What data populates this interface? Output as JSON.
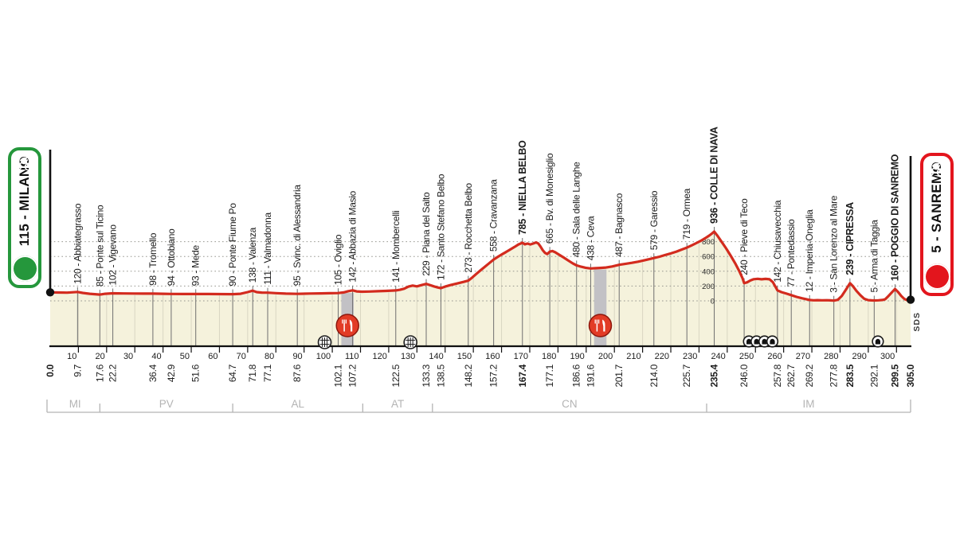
{
  "race": {
    "start_badge": "115 - MILANO",
    "finish_badge": "5 - SANREMO",
    "sds_label": "SDS"
  },
  "colors": {
    "profile_red": "#d32b1e",
    "area_fill": "#f5f2dc",
    "start_green": "#25973c",
    "finish_red": "#e3151d",
    "band_gray": "#c2c1c5",
    "town_line_gray": "#6f6f6f",
    "km_grid": "#d9d6c2",
    "dotted_gray": "#979790",
    "province_gray": "#b4b4b4",
    "axis_black": "#111111",
    "feed_icon_red": "#e23b26"
  },
  "icons": {
    "start": "cyclist-icon",
    "finish": "cyclist-icon",
    "feed_zone": "fork-knife-icon",
    "level_crossing": "crossing-grid-icon",
    "tunnel": "tunnel-arch-icon"
  },
  "chart_data": {
    "type": "area",
    "x_unit": "km",
    "y_unit": "m",
    "x_range": [
      0,
      305
    ],
    "elevation_ticks": [
      0,
      200,
      400,
      600,
      800
    ],
    "km_ticks": [
      10,
      20,
      30,
      40,
      50,
      60,
      70,
      80,
      90,
      100,
      110,
      120,
      130,
      140,
      150,
      160,
      170,
      180,
      190,
      200,
      210,
      220,
      230,
      240,
      250,
      260,
      270,
      280,
      290,
      300
    ],
    "waypoints": [
      {
        "km": 0.0,
        "elev": 115,
        "name": "MILANO",
        "bold": true,
        "type": "start"
      },
      {
        "km": 9.7,
        "elev": 120,
        "name": "Abbiategrasso",
        "bold": false
      },
      {
        "km": 17.6,
        "elev": 85,
        "name": "Ponte sul Ticino",
        "bold": false
      },
      {
        "km": 22.2,
        "elev": 102,
        "name": "Vigevano",
        "bold": false
      },
      {
        "km": 36.4,
        "elev": 98,
        "name": "Tromello",
        "bold": false
      },
      {
        "km": 42.9,
        "elev": 94,
        "name": "Ottobiano",
        "bold": false
      },
      {
        "km": 51.6,
        "elev": 93,
        "name": "Mede",
        "bold": false
      },
      {
        "km": 64.7,
        "elev": 90,
        "name": "Ponte Fiume Po",
        "bold": false
      },
      {
        "km": 71.8,
        "elev": 138,
        "name": "Valenza",
        "bold": false
      },
      {
        "km": 77.1,
        "elev": 111,
        "name": "Valmadonna",
        "bold": false
      },
      {
        "km": 87.6,
        "elev": 95,
        "name": "Svinc. di Alessandria",
        "bold": false
      },
      {
        "km": 102.1,
        "elev": 105,
        "name": "Oviglio",
        "bold": false
      },
      {
        "km": 107.2,
        "elev": 142,
        "name": "Abbazia di Masio",
        "bold": false
      },
      {
        "km": 122.5,
        "elev": 141,
        "name": "Mombercelli",
        "bold": false
      },
      {
        "km": 133.3,
        "elev": 229,
        "name": "Piana del Salto",
        "bold": false
      },
      {
        "km": 138.5,
        "elev": 172,
        "name": "Santo Stefano Belbo",
        "bold": false
      },
      {
        "km": 148.2,
        "elev": 273,
        "name": "Rocchetta Belbo",
        "bold": false
      },
      {
        "km": 157.2,
        "elev": 558,
        "name": "Cravanzana",
        "bold": false
      },
      {
        "km": 167.4,
        "elev": 785,
        "name": "NIELLA BELBO",
        "bold": true
      },
      {
        "km": 177.1,
        "elev": 665,
        "name": "Bv. di Monesiglio",
        "bold": false
      },
      {
        "km": 186.6,
        "elev": 480,
        "name": "Sala delle Langhe",
        "bold": false
      },
      {
        "km": 191.6,
        "elev": 438,
        "name": "Ceva",
        "bold": false
      },
      {
        "km": 201.7,
        "elev": 487,
        "name": "Bagnasco",
        "bold": false
      },
      {
        "km": 214.0,
        "elev": 579,
        "name": "Garessio",
        "bold": false
      },
      {
        "km": 225.7,
        "elev": 719,
        "name": "Ormea",
        "bold": false
      },
      {
        "km": 235.4,
        "elev": 936,
        "name": "COLLE DI NAVA",
        "bold": true
      },
      {
        "km": 246.0,
        "elev": 240,
        "name": "Pieve di Teco",
        "bold": false
      },
      {
        "km": 257.8,
        "elev": 142,
        "name": "Chiusavecchia",
        "bold": false
      },
      {
        "km": 262.7,
        "elev": 77,
        "name": "Pontedassio",
        "bold": false
      },
      {
        "km": 269.2,
        "elev": 12,
        "name": "Imperia-Oneglia",
        "bold": false
      },
      {
        "km": 277.8,
        "elev": 3,
        "name": "San Lorenzo al Mare",
        "bold": false
      },
      {
        "km": 283.5,
        "elev": 239,
        "name": "CIPRESSA",
        "bold": true
      },
      {
        "km": 292.1,
        "elev": 5,
        "name": "Arma di Taggia",
        "bold": false
      },
      {
        "km": 299.5,
        "elev": 160,
        "name": "POGGIO DI SANREMO",
        "bold": true
      },
      {
        "km": 305.0,
        "elev": 5,
        "name": "SANREMO",
        "bold": true,
        "type": "finish"
      }
    ],
    "provinces": [
      {
        "code": "MI",
        "from_km": 0,
        "to_km": 17.6
      },
      {
        "code": "PV",
        "from_km": 17.6,
        "to_km": 64.7
      },
      {
        "code": "AL",
        "from_km": 64.7,
        "to_km": 110.8
      },
      {
        "code": "AT",
        "from_km": 110.8,
        "to_km": 135.5
      },
      {
        "code": "CN",
        "from_km": 135.5,
        "to_km": 232.7
      },
      {
        "code": "IM",
        "from_km": 232.7,
        "to_km": 305.0
      }
    ],
    "feed_zones_km": [
      [
        103.2,
        107.6
      ],
      [
        192.8,
        197.2
      ]
    ],
    "level_crossings_km": [
      97.3,
      127.7
    ],
    "tunnels_km": [
      247.7,
      250.4,
      253.2,
      256.0,
      293.4
    ],
    "profile": [
      [
        0,
        115
      ],
      [
        3,
        113
      ],
      [
        6,
        111
      ],
      [
        9.7,
        120
      ],
      [
        11.5,
        108
      ],
      [
        14,
        96
      ],
      [
        17.6,
        85
      ],
      [
        19.5,
        96
      ],
      [
        22.2,
        102
      ],
      [
        26,
        100
      ],
      [
        30,
        99
      ],
      [
        33,
        98
      ],
      [
        36.4,
        98
      ],
      [
        40,
        96
      ],
      [
        42.9,
        94
      ],
      [
        47,
        93
      ],
      [
        51.6,
        93
      ],
      [
        56,
        92
      ],
      [
        60,
        91
      ],
      [
        64.7,
        90
      ],
      [
        67.5,
        96
      ],
      [
        70,
        118
      ],
      [
        71.8,
        138
      ],
      [
        73.2,
        118
      ],
      [
        75,
        112
      ],
      [
        77.1,
        111
      ],
      [
        80,
        104
      ],
      [
        83.5,
        98
      ],
      [
        87.6,
        95
      ],
      [
        92,
        99
      ],
      [
        96,
        101
      ],
      [
        99,
        103
      ],
      [
        102.1,
        105
      ],
      [
        104,
        114
      ],
      [
        105.6,
        130
      ],
      [
        107.2,
        142
      ],
      [
        108.6,
        128
      ],
      [
        110.5,
        124
      ],
      [
        113,
        126
      ],
      [
        116,
        130
      ],
      [
        119,
        134
      ],
      [
        122.5,
        141
      ],
      [
        124,
        149
      ],
      [
        125.5,
        165
      ],
      [
        127,
        192
      ],
      [
        128.5,
        206
      ],
      [
        130,
        196
      ],
      [
        131.5,
        212
      ],
      [
        133.3,
        229
      ],
      [
        134.6,
        214
      ],
      [
        136,
        196
      ],
      [
        137.4,
        181
      ],
      [
        138.5,
        172
      ],
      [
        140,
        192
      ],
      [
        142,
        214
      ],
      [
        144.5,
        238
      ],
      [
        146.5,
        256
      ],
      [
        148.2,
        273
      ],
      [
        149.6,
        315
      ],
      [
        151,
        362
      ],
      [
        152.4,
        408
      ],
      [
        153.8,
        452
      ],
      [
        155.4,
        502
      ],
      [
        157.2,
        558
      ],
      [
        158.6,
        592
      ],
      [
        160,
        626
      ],
      [
        161.5,
        658
      ],
      [
        163,
        692
      ],
      [
        164.6,
        728
      ],
      [
        166,
        762
      ],
      [
        167.4,
        785
      ],
      [
        168.3,
        763
      ],
      [
        169.2,
        774
      ],
      [
        170.2,
        762
      ],
      [
        171.2,
        774
      ],
      [
        172.2,
        789
      ],
      [
        173,
        776
      ],
      [
        173.8,
        734
      ],
      [
        174.6,
        684
      ],
      [
        175.4,
        648
      ],
      [
        176.2,
        632
      ],
      [
        177.1,
        665
      ],
      [
        178,
        673
      ],
      [
        179,
        657
      ],
      [
        180.4,
        624
      ],
      [
        182,
        586
      ],
      [
        183.6,
        546
      ],
      [
        185.2,
        508
      ],
      [
        186.6,
        480
      ],
      [
        188.2,
        461
      ],
      [
        189.8,
        447
      ],
      [
        191.6,
        438
      ],
      [
        193,
        441
      ],
      [
        195,
        445
      ],
      [
        197,
        451
      ],
      [
        199.2,
        464
      ],
      [
        201.7,
        487
      ],
      [
        204,
        501
      ],
      [
        206.2,
        514
      ],
      [
        208.4,
        529
      ],
      [
        210.6,
        547
      ],
      [
        212.4,
        563
      ],
      [
        214,
        579
      ],
      [
        216,
        597
      ],
      [
        218,
        619
      ],
      [
        220,
        641
      ],
      [
        222,
        666
      ],
      [
        223.8,
        692
      ],
      [
        225.7,
        719
      ],
      [
        227.4,
        750
      ],
      [
        229,
        780
      ],
      [
        230.6,
        811
      ],
      [
        232.2,
        846
      ],
      [
        233.6,
        882
      ],
      [
        234.6,
        910
      ],
      [
        235.4,
        936
      ],
      [
        236.6,
        876
      ],
      [
        238,
        798
      ],
      [
        239.6,
        710
      ],
      [
        241.2,
        612
      ],
      [
        242.8,
        508
      ],
      [
        244.2,
        408
      ],
      [
        245.4,
        306
      ],
      [
        246,
        240
      ],
      [
        247,
        250
      ],
      [
        248.2,
        275
      ],
      [
        249.4,
        292
      ],
      [
        250.8,
        298
      ],
      [
        252.2,
        291
      ],
      [
        253.6,
        297
      ],
      [
        255,
        291
      ],
      [
        256.2,
        252
      ],
      [
        257.8,
        142
      ],
      [
        259.2,
        118
      ],
      [
        261,
        98
      ],
      [
        262.7,
        77
      ],
      [
        264.6,
        54
      ],
      [
        266.6,
        34
      ],
      [
        268.2,
        20
      ],
      [
        269.2,
        12
      ],
      [
        270.6,
        8
      ],
      [
        272,
        10
      ],
      [
        273.6,
        7
      ],
      [
        275.2,
        9
      ],
      [
        276.6,
        6
      ],
      [
        277.8,
        3
      ],
      [
        279.2,
        14
      ],
      [
        280.6,
        66
      ],
      [
        282,
        148
      ],
      [
        283.5,
        239
      ],
      [
        284.6,
        196
      ],
      [
        285.8,
        136
      ],
      [
        287.2,
        76
      ],
      [
        288.6,
        28
      ],
      [
        290,
        10
      ],
      [
        291.2,
        6
      ],
      [
        292.1,
        5
      ],
      [
        293.6,
        8
      ],
      [
        295,
        12
      ],
      [
        296,
        22
      ],
      [
        297.2,
        68
      ],
      [
        298.4,
        116
      ],
      [
        299.5,
        160
      ],
      [
        300.6,
        118
      ],
      [
        301.7,
        66
      ],
      [
        302.8,
        26
      ],
      [
        303.8,
        10
      ],
      [
        305,
        5
      ]
    ]
  }
}
